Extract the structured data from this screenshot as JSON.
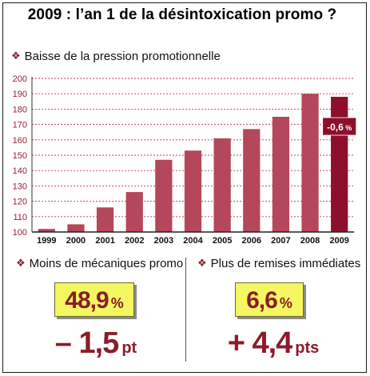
{
  "title": "2009 : l’an 1 de la désintoxication promo ?",
  "bullet_symbol": "❖",
  "chart_subtitle": "Baisse de la pression promotionnelle",
  "chart_data": {
    "type": "bar",
    "title": "Baisse de la pression promotionnelle",
    "categories": [
      "1999",
      "2000",
      "2001",
      "2002",
      "2003",
      "2004",
      "2005",
      "2006",
      "2007",
      "2008",
      "2009"
    ],
    "values": [
      102,
      105,
      116,
      126,
      147,
      153,
      161,
      167,
      175,
      190,
      188
    ],
    "ylim": [
      100,
      200
    ],
    "yticks": [
      100,
      110,
      120,
      130,
      140,
      150,
      160,
      170,
      180,
      190,
      200
    ],
    "grid": true,
    "bar_color": "#b5475b",
    "highlight_color": "#8e0f2c",
    "highlight_index": 10,
    "annotation": "-0,6 %",
    "annotation_num": "-0,6",
    "annotation_unit": "%"
  },
  "kpi_left": {
    "label": "Moins de mécaniques promo",
    "value": "48,9",
    "value_unit": "%",
    "delta": "– 1,5",
    "delta_unit": "pt"
  },
  "kpi_right": {
    "label": "Plus de remises immédiates",
    "value": "6,6",
    "value_unit": "%",
    "delta": "+ 4,4",
    "delta_unit": "pts"
  },
  "colors": {
    "accent": "#8b1c2b",
    "bar": "#b5475b",
    "bar_highlight": "#8e0f2c",
    "grid": "#c03a55",
    "kpi_box": "#f4f760"
  }
}
